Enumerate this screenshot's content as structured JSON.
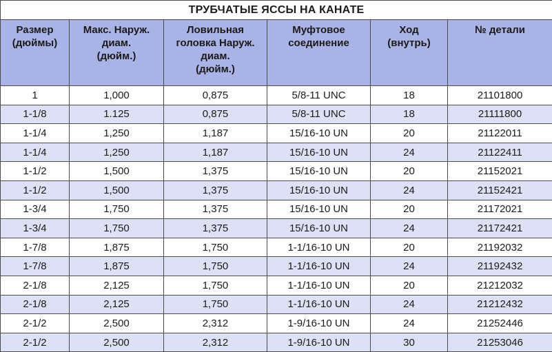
{
  "title": "ТРУБЧАТЫЕ ЯССЫ НА КАНАТЕ",
  "headers": [
    [
      "Размер",
      "(дюймы)"
    ],
    [
      "Макс. Наруж.",
      "диам.",
      "(дюйм.)"
    ],
    [
      "Ловильная",
      "головка Наруж.",
      "диам.",
      "(дюйм.)"
    ],
    [
      "Муфтовое",
      "соединение"
    ],
    [
      "Ход",
      "(внутрь)"
    ],
    [
      "№ детали"
    ]
  ],
  "rows": [
    [
      "1",
      "1,000",
      "0,875",
      "5/8-11 UNC",
      "18",
      "21101800"
    ],
    [
      "1-1/8",
      "1.125",
      "0,875",
      "5/8-11 UNC",
      "18",
      "21111800"
    ],
    [
      "1-1/4",
      "1,250",
      "1,187",
      "15/16-10 UN",
      "20",
      "21122011"
    ],
    [
      "1-1/4",
      "1,250",
      "1,187",
      "15/16-10 UN",
      "24",
      "21122411"
    ],
    [
      "1-1/2",
      "1,500",
      "1,375",
      "15/16-10 UN",
      "20",
      "21152021"
    ],
    [
      "1-1/2",
      "1,500",
      "1,375",
      "15/16-10 UN",
      "24",
      "21152421"
    ],
    [
      "1-3/4",
      "1,750",
      "1,375",
      "15/16-10 UN",
      "20",
      "21172021"
    ],
    [
      "1-3/4",
      "1,750",
      "1,375",
      "15/16-10 UN",
      "24",
      "21172421"
    ],
    [
      "1-7/8",
      "1,875",
      "1,750",
      "1-1/16-10 UN",
      "20",
      "21192032"
    ],
    [
      "1-7/8",
      "1,875",
      "1,750",
      "1-1/16-10 UN",
      "24",
      "21192432"
    ],
    [
      "2-1/8",
      "2,125",
      "1,750",
      "1-1/16-10 UN",
      "20",
      "21212032"
    ],
    [
      "2-1/8",
      "2,125",
      "1,750",
      "1-1/16-10 UN",
      "24",
      "21212432"
    ],
    [
      "2-1/2",
      "2,500",
      "2,312",
      "1-9/16-10 UN",
      "24",
      "21252446"
    ],
    [
      "2-1/2",
      "2,500",
      "2,312",
      "1-9/16-10 UN",
      "30",
      "21253046"
    ]
  ]
}
